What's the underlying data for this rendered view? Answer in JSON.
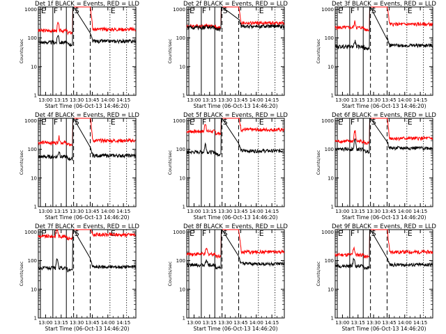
{
  "chart_data": {
    "type": "line",
    "common": {
      "xlabel": "Start Time (06-Oct-13 14:46:20)",
      "ylabel": "Counts/sec",
      "x_ticks": [
        "13:00",
        "13:15",
        "13:30",
        "13:45",
        "14:00",
        "14:15"
      ],
      "x_tick_minutes": [
        0,
        15,
        30,
        45,
        60,
        75
      ],
      "xlim_minutes": [
        -7,
        87
      ],
      "y_scale": "log",
      "y_ticks": [
        "1",
        "10",
        "100",
        "1000"
      ],
      "y_tick_values": [
        1,
        10,
        100,
        1000
      ],
      "ylim": [
        1,
        1200
      ],
      "series_colors": {
        "events": "#000000",
        "lld": "#ff0000"
      },
      "series_names": [
        "BLACK = Events",
        "RED = LLD"
      ],
      "markers": [
        {
          "label": "E",
          "minutes": -5,
          "style": "solid"
        },
        {
          "label": "F",
          "minutes": 7,
          "style": "solid"
        },
        {
          "label": "",
          "minutes": 20,
          "style": "solid"
        },
        {
          "label": "S",
          "minutes": 27,
          "style": "dashed"
        },
        {
          "label": "",
          "minutes": 43,
          "style": "dashed"
        },
        {
          "label": "E",
          "minutes": 62,
          "style": "dotted"
        },
        {
          "label": "",
          "minutes": 78,
          "style": "dotted"
        }
      ]
    },
    "panels": [
      {
        "title": "Det 1f BLACK = Events, RED = LLD",
        "events": 70,
        "lld": 180,
        "lld_after": 200,
        "bump_minutes": 12,
        "bump_factor": 1.9
      },
      {
        "title": "Det 2f BLACK = Events, RED = LLD",
        "events": 230,
        "lld": 260,
        "lld_after": 330,
        "bump_minutes": 12,
        "bump_factor": 1.1
      },
      {
        "title": "Det 3f BLACK = Events, RED = LLD",
        "events": 50,
        "lld": 230,
        "lld_after": 300,
        "bump_minutes": 12,
        "bump_factor": 1.6
      },
      {
        "title": "Det 4f BLACK = Events, RED = LLD",
        "events": 55,
        "lld": 170,
        "lld_after": 200,
        "bump_minutes": 13,
        "bump_factor": 1.6
      },
      {
        "title": "Det 5f BLACK = Events, RED = LLD",
        "events": 80,
        "lld": 420,
        "lld_after": 480,
        "bump_minutes": 11,
        "bump_factor": 2.0
      },
      {
        "title": "Det 6f BLACK = Events, RED = LLD",
        "events": 100,
        "lld": 190,
        "lld_after": 240,
        "bump_minutes": 12,
        "bump_factor": 2.4
      },
      {
        "title": "Det 7f BLACK = Events, RED = LLD",
        "events": 55,
        "lld": 700,
        "lld_after": 800,
        "bump_minutes": 11,
        "bump_factor": 2.2
      },
      {
        "title": "Det 8f BLACK = Events, RED = LLD",
        "events": 70,
        "lld": 170,
        "lld_after": 200,
        "bump_minutes": 12,
        "bump_factor": 1.6
      },
      {
        "title": "Det 9f BLACK = Events, RED = LLD",
        "events": 65,
        "lld": 160,
        "lld_after": 200,
        "bump_minutes": 11,
        "bump_factor": 1.9
      }
    ]
  }
}
